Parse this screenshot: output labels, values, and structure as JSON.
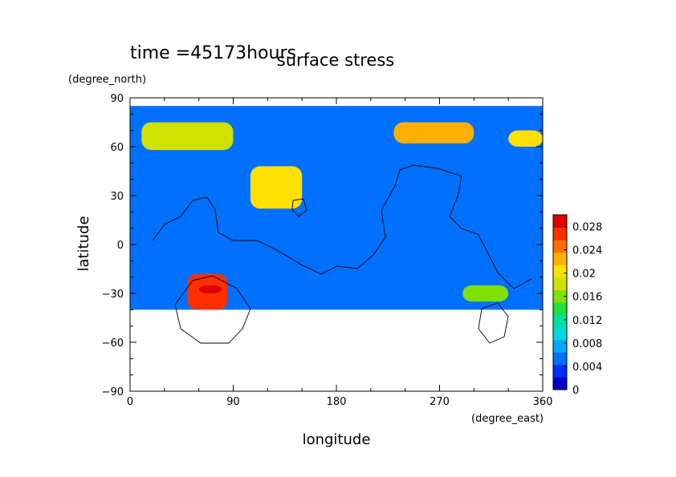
{
  "chart_data": {
    "type": "heatmap",
    "title": "surface stress",
    "subtitle": "time =45173hours",
    "xlabel": "longitude",
    "ylabel": "latitude",
    "x_unit": "(degree_east)",
    "y_unit": "(degree_north)",
    "xlim": [
      0,
      360
    ],
    "ylim": [
      -90,
      90
    ],
    "x_ticks": [
      "0",
      "90",
      "180",
      "270",
      "360"
    ],
    "y_ticks": [
      "90",
      "60",
      "30",
      "0",
      "−30",
      "−60",
      "−90"
    ],
    "x_tick_values": [
      0,
      90,
      180,
      270,
      360
    ],
    "y_tick_values": [
      90,
      60,
      30,
      0,
      -30,
      -60,
      -90
    ],
    "colorbar": {
      "range": [
        0,
        0.03
      ],
      "tick_labels": [
        "0.028",
        "0.024",
        "0.02",
        "0.016",
        "0.012",
        "0.008",
        "0.004",
        "0"
      ],
      "tick_values": [
        0.028,
        0.024,
        0.02,
        0.016,
        0.012,
        0.008,
        0.004,
        0
      ],
      "colors": [
        "#0000c8",
        "#0030ff",
        "#0070ff",
        "#00a8ff",
        "#00d8e0",
        "#00e0a0",
        "#20e040",
        "#80e000",
        "#d0e000",
        "#ffe000",
        "#ffb000",
        "#ff7000",
        "#ff3000",
        "#e00000"
      ]
    },
    "grid": false,
    "regions": [
      {
        "lon": [
          0,
          360
        ],
        "lat": [
          -40,
          85
        ],
        "value": 0.005
      },
      {
        "lon": [
          10,
          90
        ],
        "lat": [
          58,
          75
        ],
        "value": 0.018
      },
      {
        "lon": [
          230,
          300
        ],
        "lat": [
          62,
          75
        ],
        "value": 0.022
      },
      {
        "lon": [
          330,
          360
        ],
        "lat": [
          60,
          70
        ],
        "value": 0.02
      },
      {
        "lon": [
          105,
          150
        ],
        "lat": [
          22,
          48
        ],
        "value": 0.02
      },
      {
        "lon": [
          50,
          85
        ],
        "lat": [
          -40,
          -18
        ],
        "value": 0.026
      },
      {
        "lon": [
          60,
          80
        ],
        "lat": [
          -30,
          -25
        ],
        "value": 0.03
      },
      {
        "lon": [
          290,
          330
        ],
        "lat": [
          -35,
          -25
        ],
        "value": 0.015
      }
    ]
  }
}
